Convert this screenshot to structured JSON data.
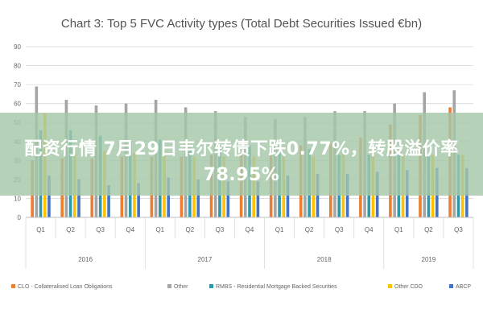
{
  "chart_data": {
    "type": "bar",
    "title": "Chart 3: Top 5 FVC Activity types (Total Debt Securities Issued €bn)",
    "ylim": [
      0,
      90
    ],
    "yticks": [
      0,
      10,
      20,
      30,
      40,
      50,
      60,
      70,
      80,
      90
    ],
    "grid": true,
    "legend_position": "bottom",
    "categories": [
      "Q1",
      "Q2",
      "Q3",
      "Q4",
      "Q1",
      "Q2",
      "Q3",
      "Q4",
      "Q1",
      "Q2",
      "Q3",
      "Q4",
      "Q1",
      "Q2",
      "Q3"
    ],
    "year_groups": [
      {
        "label": "2016",
        "count": 4
      },
      {
        "label": "2017",
        "count": 4
      },
      {
        "label": "2018",
        "count": 4
      },
      {
        "label": "2019",
        "count": 3
      }
    ],
    "series": [
      {
        "name": "CLO - Collateralised Loan Obligations",
        "color": "#ed7d31",
        "values": [
          30,
          31,
          31,
          32,
          32,
          32,
          33,
          34,
          36,
          38,
          39,
          42,
          49,
          54,
          58
        ]
      },
      {
        "name": "Other",
        "color": "#a5a5a5",
        "values": [
          69,
          62,
          59,
          60,
          62,
          58,
          56,
          53,
          52,
          53,
          56,
          56,
          60,
          66,
          67
        ]
      },
      {
        "name": "RMBS - Residential Mortgage Backed Securities",
        "color": "#2e9aa8",
        "values": [
          46,
          46,
          43,
          40,
          41,
          37,
          38,
          38,
          37,
          36,
          33,
          33,
          34,
          32,
          33
        ]
      },
      {
        "name": "Other CDO",
        "color": "#ffc000",
        "values": [
          55,
          35,
          35,
          34,
          35,
          32,
          32,
          32,
          32,
          32,
          34,
          34,
          33,
          33,
          33
        ]
      },
      {
        "name": "ABCP",
        "color": "#4472c4",
        "values": [
          22,
          20,
          17,
          18,
          21,
          20,
          19,
          19,
          22,
          23,
          23,
          24,
          25,
          26,
          26
        ]
      }
    ]
  },
  "overlay": {
    "line1": "配资行情 7月29日韦尔转债下跌0.77%，转股溢价率",
    "line2": "78.95%"
  }
}
